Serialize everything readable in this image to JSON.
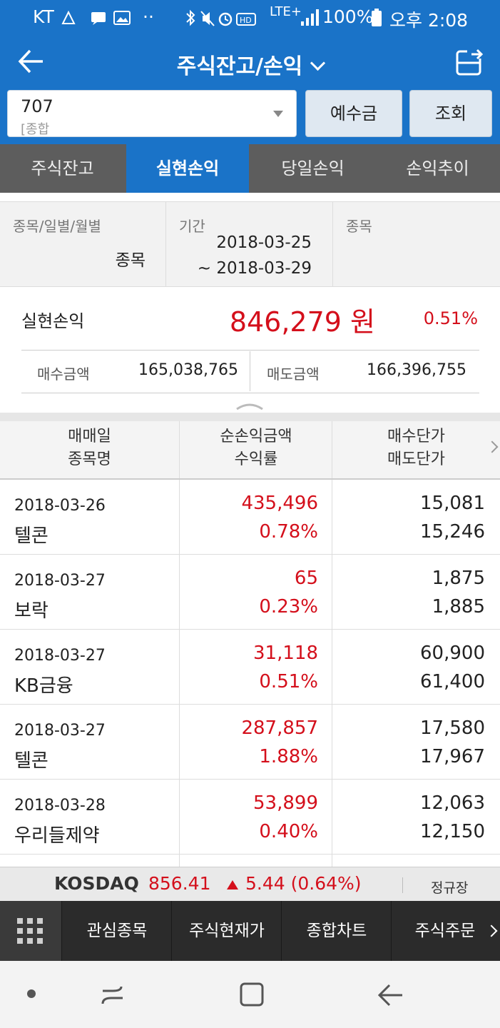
{
  "status_bar": {
    "carrier": "KT",
    "network": "LTE+",
    "battery": "100%",
    "time": "오후 2:08"
  },
  "header": {
    "title": "주식잔고/손익"
  },
  "account": {
    "number": "707",
    "type_label": "[종합"
  },
  "buttons": {
    "deposit": "예수금",
    "query": "조회"
  },
  "tabs": [
    {
      "label": "주식잔고",
      "active": false
    },
    {
      "label": "실현손익",
      "active": true
    },
    {
      "label": "당일손익",
      "active": false
    },
    {
      "label": "손익추이",
      "active": false
    }
  ],
  "filter": {
    "mode_label": "종목/일별/월별",
    "mode_value": "종목",
    "period_label": "기간",
    "period_start": "2018-03-25",
    "period_end": "~ 2018-03-29",
    "stock_label": "종목"
  },
  "summary": {
    "label": "실현손익",
    "amount": "846,279 원",
    "rate": "0.51%",
    "buy_label": "매수금액",
    "buy_value": "165,038,765",
    "sell_label": "매도금액",
    "sell_value": "166,396,755"
  },
  "table": {
    "headers": {
      "col1_line1": "매매일",
      "col1_line2": "종목명",
      "col2_line1": "순손익금액",
      "col2_line2": "수익률",
      "col3_line1": "매수단가",
      "col3_line2": "매도단가"
    },
    "rows": [
      {
        "date": "2018-03-26",
        "name": "텔콘",
        "pnl": "435,496",
        "rate": "0.78%",
        "buy": "15,081",
        "sell": "15,246"
      },
      {
        "date": "2018-03-27",
        "name": "보락",
        "pnl": "65",
        "rate": "0.23%",
        "buy": "1,875",
        "sell": "1,885"
      },
      {
        "date": "2018-03-27",
        "name": "KB금융",
        "pnl": "31,118",
        "rate": "0.51%",
        "buy": "60,900",
        "sell": "61,400"
      },
      {
        "date": "2018-03-27",
        "name": "텔콘",
        "pnl": "287,857",
        "rate": "1.88%",
        "buy": "17,580",
        "sell": "17,967"
      },
      {
        "date": "2018-03-28",
        "name": "우리들제약",
        "pnl": "53,899",
        "rate": "0.40%",
        "buy": "12,063",
        "sell": "12,150"
      }
    ]
  },
  "ticker": {
    "name": "KOSDAQ",
    "price": "856.41",
    "change": "5.44 (0.64%)",
    "session": "정규장"
  },
  "bottom_menu": [
    {
      "label": "관심종목"
    },
    {
      "label": "주식현재가"
    },
    {
      "label": "종합차트"
    },
    {
      "label": "주식주문"
    }
  ],
  "colors": {
    "primary": "#1a73c8",
    "up": "#d40f1b",
    "tab_bar": "#5d5d5d",
    "menu_bar": "#2b2b2b"
  }
}
